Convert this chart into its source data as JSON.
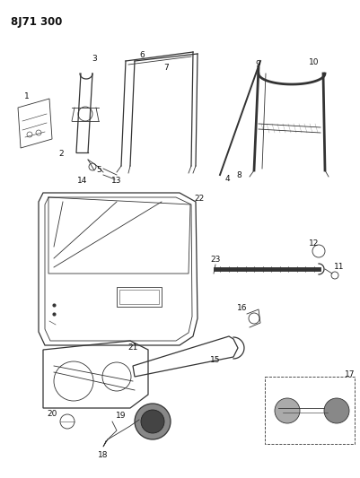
{
  "title": "8J71 300",
  "bg_color": "#ffffff",
  "line_color": "#333333",
  "label_color": "#111111",
  "title_fontsize": 8.5,
  "label_fontsize": 6.5,
  "figsize": [
    4.01,
    5.33
  ],
  "dpi": 100
}
